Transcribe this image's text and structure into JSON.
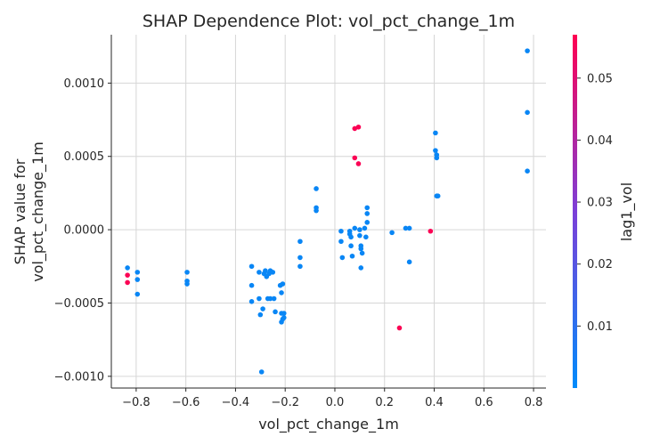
{
  "chart_data": {
    "type": "scatter",
    "title": "SHAP Dependence Plot: vol_pct_change_1m",
    "xlabel": "vol_pct_change_1m",
    "ylabel_lines": [
      "SHAP value for",
      "vol_pct_change_1m"
    ],
    "xlim": [
      -0.9,
      0.85
    ],
    "ylim": [
      -0.00108,
      0.00133
    ],
    "xticks": [
      -0.8,
      -0.6,
      -0.4,
      -0.2,
      0.0,
      0.2,
      0.4,
      0.6,
      0.8
    ],
    "xtick_labels": [
      "−0.8",
      "−0.6",
      "−0.4",
      "−0.2",
      "0.0",
      "0.2",
      "0.4",
      "0.6",
      "0.8"
    ],
    "yticks": [
      -0.001,
      -0.0005,
      0.0,
      0.0005,
      0.001
    ],
    "ytick_labels": [
      "−0.0010",
      "−0.0005",
      "0.0000",
      "0.0005",
      "0.0010"
    ],
    "grid": true,
    "colorbar": {
      "label": "lag1_vol",
      "range": [
        0.0,
        0.057
      ],
      "ticks": [
        0.01,
        0.02,
        0.03,
        0.04,
        0.05
      ],
      "tick_labels": [
        "0.01",
        "0.02",
        "0.03",
        "0.04",
        "0.05"
      ],
      "colors": [
        "#008bfb",
        "#ff0051"
      ]
    },
    "points": [
      {
        "x": -0.835,
        "y": -0.00026,
        "c": 0.002
      },
      {
        "x": -0.835,
        "y": -0.00031,
        "c": 0.056
      },
      {
        "x": -0.835,
        "y": -0.00036,
        "c": 0.056
      },
      {
        "x": -0.795,
        "y": -0.00029,
        "c": 0.002
      },
      {
        "x": -0.795,
        "y": -0.00034,
        "c": 0.002
      },
      {
        "x": -0.795,
        "y": -0.00044,
        "c": 0.002
      },
      {
        "x": -0.595,
        "y": -0.00029,
        "c": 0.002
      },
      {
        "x": -0.595,
        "y": -0.00035,
        "c": 0.002
      },
      {
        "x": -0.595,
        "y": -0.00037,
        "c": 0.002
      },
      {
        "x": -0.335,
        "y": -0.00025,
        "c": 0.002
      },
      {
        "x": -0.335,
        "y": -0.00038,
        "c": 0.002
      },
      {
        "x": -0.335,
        "y": -0.00049,
        "c": 0.002
      },
      {
        "x": -0.305,
        "y": -0.00029,
        "c": 0.002
      },
      {
        "x": -0.305,
        "y": -0.00047,
        "c": 0.002
      },
      {
        "x": -0.3,
        "y": -0.00058,
        "c": 0.002
      },
      {
        "x": -0.295,
        "y": -0.00097,
        "c": 0.002
      },
      {
        "x": -0.29,
        "y": -0.00054,
        "c": 0.002
      },
      {
        "x": -0.285,
        "y": -0.0003,
        "c": 0.002
      },
      {
        "x": -0.28,
        "y": -0.00028,
        "c": 0.002
      },
      {
        "x": -0.275,
        "y": -0.00032,
        "c": 0.002
      },
      {
        "x": -0.27,
        "y": -0.00047,
        "c": 0.002
      },
      {
        "x": -0.265,
        "y": -0.0003,
        "c": 0.002
      },
      {
        "x": -0.26,
        "y": -0.00047,
        "c": 0.002
      },
      {
        "x": -0.26,
        "y": -0.00028,
        "c": 0.002
      },
      {
        "x": -0.25,
        "y": -0.00029,
        "c": 0.002
      },
      {
        "x": -0.245,
        "y": -0.00047,
        "c": 0.002
      },
      {
        "x": -0.24,
        "y": -0.00056,
        "c": 0.002
      },
      {
        "x": -0.22,
        "y": -0.00038,
        "c": 0.002
      },
      {
        "x": -0.215,
        "y": -0.00043,
        "c": 0.002
      },
      {
        "x": -0.215,
        "y": -0.00057,
        "c": 0.002
      },
      {
        "x": -0.215,
        "y": -0.00063,
        "c": 0.002
      },
      {
        "x": -0.21,
        "y": -0.00037,
        "c": 0.002
      },
      {
        "x": -0.21,
        "y": -0.00061,
        "c": 0.002
      },
      {
        "x": -0.205,
        "y": -0.00057,
        "c": 0.002
      },
      {
        "x": -0.205,
        "y": -0.0006,
        "c": 0.002
      },
      {
        "x": -0.14,
        "y": -8e-05,
        "c": 0.002
      },
      {
        "x": -0.14,
        "y": -0.00019,
        "c": 0.002
      },
      {
        "x": -0.14,
        "y": -0.00025,
        "c": 0.002
      },
      {
        "x": -0.075,
        "y": 0.00028,
        "c": 0.002
      },
      {
        "x": -0.075,
        "y": 0.00015,
        "c": 0.002
      },
      {
        "x": -0.075,
        "y": 0.00013,
        "c": 0.002
      },
      {
        "x": 0.025,
        "y": -1e-05,
        "c": 0.002
      },
      {
        "x": 0.025,
        "y": -8e-05,
        "c": 0.002
      },
      {
        "x": 0.03,
        "y": -0.00019,
        "c": 0.002
      },
      {
        "x": 0.06,
        "y": -1e-05,
        "c": 0.002
      },
      {
        "x": 0.06,
        "y": -3e-05,
        "c": 0.002
      },
      {
        "x": 0.065,
        "y": -5e-05,
        "c": 0.002
      },
      {
        "x": 0.065,
        "y": -0.00011,
        "c": 0.002
      },
      {
        "x": 0.07,
        "y": -0.00018,
        "c": 0.002
      },
      {
        "x": 0.08,
        "y": 1e-05,
        "c": 0.002
      },
      {
        "x": 0.08,
        "y": 0.00069,
        "c": 0.056
      },
      {
        "x": 0.08,
        "y": 0.00049,
        "c": 0.056
      },
      {
        "x": 0.095,
        "y": 0.0007,
        "c": 0.056
      },
      {
        "x": 0.095,
        "y": 0.00045,
        "c": 0.056
      },
      {
        "x": 0.1,
        "y": 0.0,
        "c": 0.002
      },
      {
        "x": 0.1,
        "y": -4e-05,
        "c": 0.002
      },
      {
        "x": 0.105,
        "y": -0.00011,
        "c": 0.002
      },
      {
        "x": 0.105,
        "y": -0.00013,
        "c": 0.002
      },
      {
        "x": 0.105,
        "y": -0.00026,
        "c": 0.002
      },
      {
        "x": 0.11,
        "y": -0.00016,
        "c": 0.002
      },
      {
        "x": 0.12,
        "y": 1e-05,
        "c": 0.002
      },
      {
        "x": 0.125,
        "y": -5e-05,
        "c": 0.002
      },
      {
        "x": 0.13,
        "y": 0.00015,
        "c": 0.002
      },
      {
        "x": 0.13,
        "y": 0.00011,
        "c": 0.002
      },
      {
        "x": 0.13,
        "y": 5e-05,
        "c": 0.002
      },
      {
        "x": 0.23,
        "y": -2e-05,
        "c": 0.002
      },
      {
        "x": 0.26,
        "y": -0.00067,
        "c": 0.056
      },
      {
        "x": 0.285,
        "y": 1e-05,
        "c": 0.002
      },
      {
        "x": 0.3,
        "y": 1e-05,
        "c": 0.002
      },
      {
        "x": 0.3,
        "y": -0.00022,
        "c": 0.002
      },
      {
        "x": 0.385,
        "y": -1e-05,
        "c": 0.056
      },
      {
        "x": 0.405,
        "y": 0.00066,
        "c": 0.002
      },
      {
        "x": 0.405,
        "y": 0.00054,
        "c": 0.002
      },
      {
        "x": 0.41,
        "y": 0.00051,
        "c": 0.002
      },
      {
        "x": 0.41,
        "y": 0.00049,
        "c": 0.002
      },
      {
        "x": 0.41,
        "y": 0.00023,
        "c": 0.002
      },
      {
        "x": 0.415,
        "y": 0.00023,
        "c": 0.002
      },
      {
        "x": 0.775,
        "y": 0.00122,
        "c": 0.002
      },
      {
        "x": 0.775,
        "y": 0.0008,
        "c": 0.002
      },
      {
        "x": 0.775,
        "y": 0.0004,
        "c": 0.002
      }
    ]
  }
}
